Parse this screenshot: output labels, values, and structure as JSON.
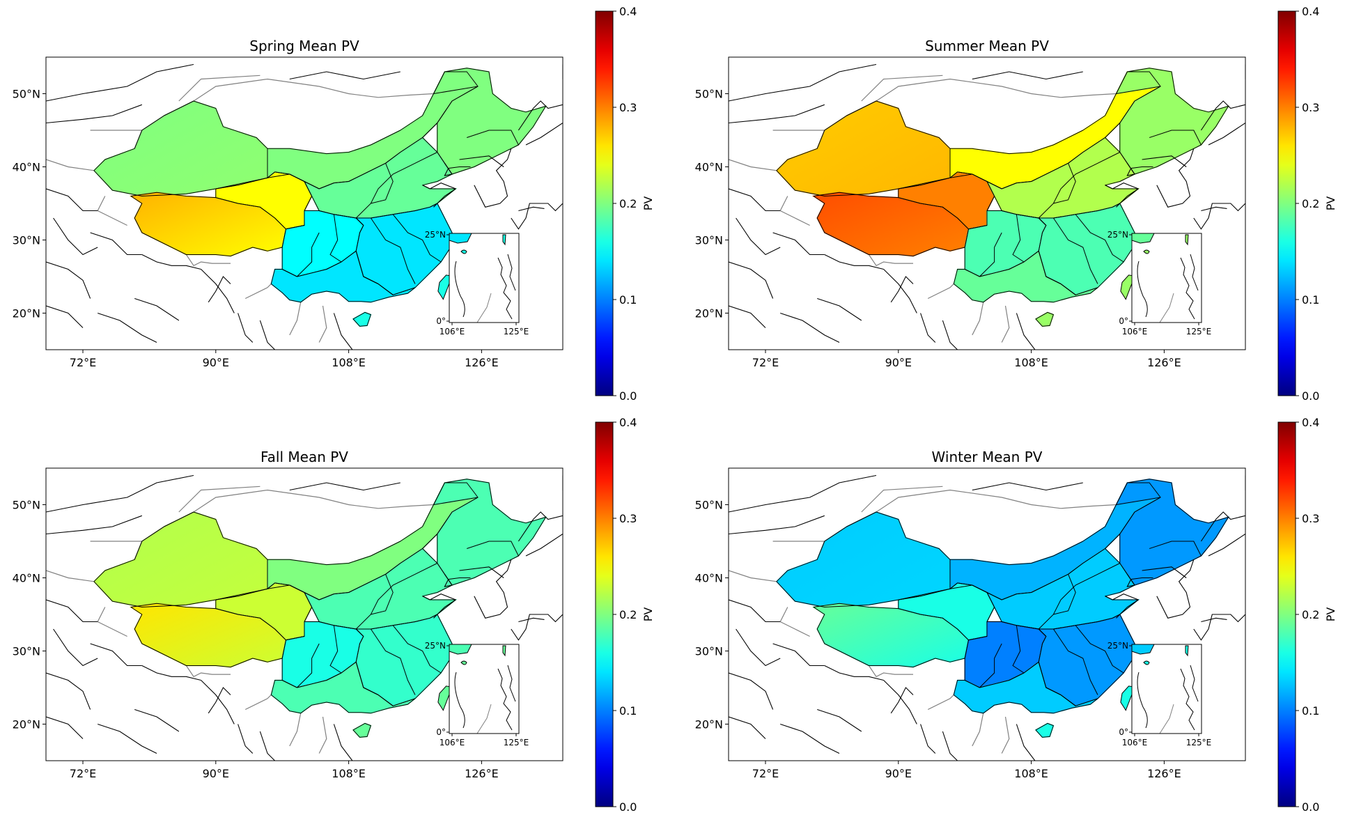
{
  "figure": {
    "colormap": "jet",
    "colorbar_label": "PV",
    "colorbar_ticks": [
      "0.0",
      "0.1",
      "0.2",
      "0.3",
      "0.4"
    ],
    "x_ticks": [
      "72°E",
      "90°E",
      "108°E",
      "126°E"
    ],
    "y_ticks": [
      "50°N",
      "40°N",
      "30°N",
      "20°N"
    ],
    "inset_x_ticks": [
      "106°E",
      "125°E"
    ],
    "inset_y_ticks": [
      "25°N",
      "0°"
    ]
  },
  "chart_data": [
    {
      "type": "heatmap",
      "title": "Spring Mean PV",
      "vmin": 0.0,
      "vmax": 0.4,
      "xlim": [
        67,
        137
      ],
      "ylim": [
        15,
        55
      ],
      "regions": {
        "northwest": 0.2,
        "tibet": 0.28,
        "qinghai": 0.25,
        "inner_mongolia": 0.2,
        "northeast": 0.2,
        "north_china": 0.19,
        "sichuan_basin": 0.15,
        "southeast": 0.14,
        "south": 0.14,
        "taiwan_hainan": 0.16
      }
    },
    {
      "type": "heatmap",
      "title": "Summer Mean PV",
      "vmin": 0.0,
      "vmax": 0.4,
      "xlim": [
        67,
        137
      ],
      "ylim": [
        15,
        55
      ],
      "regions": {
        "northwest": 0.27,
        "tibet": 0.32,
        "qinghai": 0.3,
        "inner_mongolia": 0.25,
        "northeast": 0.21,
        "north_china": 0.22,
        "sichuan_basin": 0.18,
        "southeast": 0.18,
        "south": 0.19,
        "taiwan_hainan": 0.21
      }
    },
    {
      "type": "heatmap",
      "title": "Fall Mean PV",
      "vmin": 0.0,
      "vmax": 0.4,
      "xlim": [
        67,
        137
      ],
      "ylim": [
        15,
        55
      ],
      "regions": {
        "northwest": 0.22,
        "tibet": 0.26,
        "qinghai": 0.23,
        "inner_mongolia": 0.2,
        "northeast": 0.18,
        "north_china": 0.18,
        "sichuan_basin": 0.16,
        "southeast": 0.17,
        "south": 0.18,
        "taiwan_hainan": 0.19
      }
    },
    {
      "type": "heatmap",
      "title": "Winter Mean PV",
      "vmin": 0.0,
      "vmax": 0.4,
      "xlim": [
        67,
        137
      ],
      "ylim": [
        15,
        55
      ],
      "regions": {
        "northwest": 0.13,
        "tibet": 0.19,
        "qinghai": 0.16,
        "inner_mongolia": 0.12,
        "northeast": 0.11,
        "north_china": 0.13,
        "sichuan_basin": 0.1,
        "southeast": 0.11,
        "south": 0.13,
        "taiwan_hainan": 0.16
      }
    }
  ]
}
